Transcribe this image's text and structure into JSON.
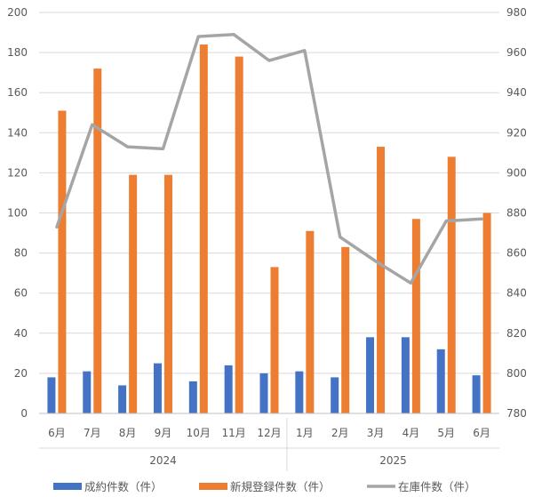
{
  "chart_data": {
    "type": "bar",
    "categories": [
      "6月",
      "7月",
      "8月",
      "9月",
      "10月",
      "11月",
      "12月",
      "1月",
      "2月",
      "3月",
      "4月",
      "5月",
      "6月"
    ],
    "year_groups": [
      {
        "label": "2024",
        "from": 0,
        "to": 6
      },
      {
        "label": "2025",
        "from": 7,
        "to": 12
      }
    ],
    "series": [
      {
        "name": "成約件数（件）",
        "kind": "bar",
        "axis": "left",
        "color": "#4472C4",
        "values": [
          18,
          21,
          14,
          25,
          16,
          24,
          20,
          21,
          18,
          38,
          38,
          32,
          19
        ]
      },
      {
        "name": "新規登録件数（件）",
        "kind": "bar",
        "axis": "left",
        "color": "#ED7D31",
        "values": [
          151,
          172,
          119,
          119,
          184,
          178,
          73,
          91,
          83,
          133,
          97,
          128,
          100
        ]
      },
      {
        "name": "在庫件数（件）",
        "kind": "line",
        "axis": "right",
        "color": "#A5A5A5",
        "values": [
          873,
          924,
          913,
          912,
          968,
          969,
          956,
          961,
          868,
          856,
          845,
          876,
          877
        ]
      }
    ],
    "left_axis": {
      "min": 0,
      "max": 200,
      "ticks": [
        "0",
        "20",
        "40",
        "60",
        "80",
        "100",
        "120",
        "140",
        "160",
        "180",
        "200"
      ]
    },
    "right_axis": {
      "min": 780,
      "max": 980,
      "ticks": [
        "780",
        "800",
        "820",
        "840",
        "860",
        "880",
        "900",
        "920",
        "940",
        "960",
        "980"
      ]
    },
    "grid": true,
    "legend_position": "bottom"
  }
}
